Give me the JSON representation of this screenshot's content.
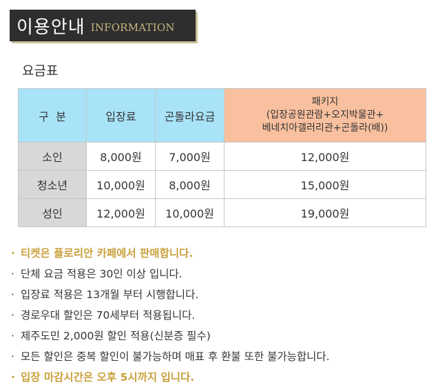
{
  "header": {
    "title_ko": "이용안내",
    "title_en": "INFORMATION"
  },
  "section": {
    "title": "요금표"
  },
  "table": {
    "headers": {
      "category": "구  분",
      "entry": "입장료",
      "gondola": "곤돌라요금",
      "package_line1": "패키지",
      "package_line2": "(입장공원관람+오지박물관+",
      "package_line3": "베네치아갤러리관+곤돌라(배))"
    },
    "rows": [
      {
        "category": "소인",
        "entry": "8,000원",
        "gondola": "7,000원",
        "package": "12,000원"
      },
      {
        "category": "청소년",
        "entry": "10,000원",
        "gondola": "8,000원",
        "package": "15,000원"
      },
      {
        "category": "성인",
        "entry": "12,000원",
        "gondola": "10,000원",
        "package": "19,000원"
      }
    ]
  },
  "notes": {
    "bullet": "·",
    "items": [
      {
        "text": "티켓은 플로리안 카페에서 판매합니다."
      },
      {
        "text": "단체 요금 적용은 30인 이상 입니다."
      },
      {
        "text": "입장료 적용은 13개월 부터 시행합니다."
      },
      {
        "text": "경로우대 할인은 70세부터 적용됩니다."
      },
      {
        "text": "제주도민 2,000원 할인 적용(신분증 필수)"
      },
      {
        "text": "모든 할인은 중복 할인이 불가능하며 매표 후 환불 또한 불가능합니다."
      },
      {
        "text": "입장 마감시간은 오후 5시까지 입니다."
      }
    ]
  },
  "colors": {
    "header_bg": "#2e2e2e",
    "header_accent": "#c8b581",
    "th_blue": "#a8e3f8",
    "th_orange": "#f9c09f",
    "category_gray": "#d8d8d8",
    "highlight_gold": "#c9a13c"
  }
}
